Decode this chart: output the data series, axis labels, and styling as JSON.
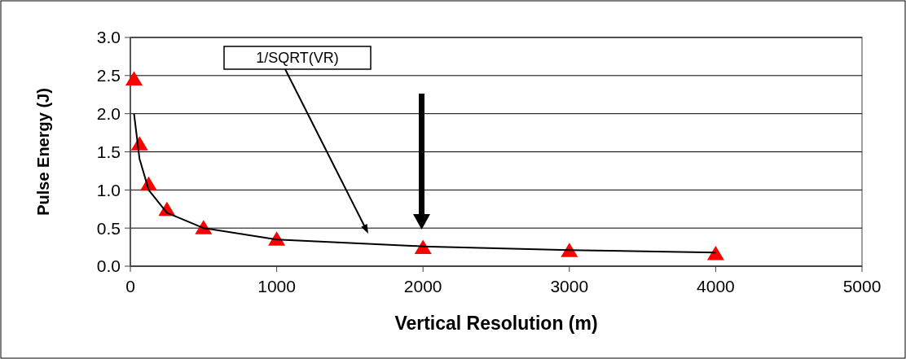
{
  "chart_data": {
    "type": "scatter",
    "xlabel": "Vertical Resolution (m)",
    "ylabel": "Pulse Energy (J)",
    "x": [
      25,
      62.5,
      125,
      250,
      500,
      1000,
      2000,
      3000,
      4000
    ],
    "series": [
      {
        "type": "scatter",
        "color": "#ff0000",
        "marker": "triangle",
        "values": [
          2.45,
          1.6,
          1.07,
          0.74,
          0.5,
          0.35,
          0.24,
          0.2,
          0.16
        ]
      },
      {
        "type": "line",
        "color": "#000000",
        "marker": "none",
        "values": [
          2.0,
          1.41,
          1.0,
          0.7,
          0.5,
          0.35,
          0.26,
          0.21,
          0.18
        ]
      }
    ],
    "xlim": [
      0,
      5000
    ],
    "xticks": [
      0,
      1000,
      2000,
      3000,
      4000,
      5000
    ],
    "ylim": [
      0,
      3
    ],
    "yticks": [
      {
        "value": 0,
        "label": "0.0"
      },
      {
        "value": 0.5,
        "label": "0.5"
      },
      {
        "value": 1,
        "label": "1.0"
      },
      {
        "value": 1.5,
        "label": "1.5"
      },
      {
        "value": 2,
        "label": "2.0"
      },
      {
        "value": 2.5,
        "label": "2.5"
      },
      {
        "value": 3,
        "label": "3.0"
      }
    ],
    "grid": "y",
    "annotations": [
      "1/SQRT(VR)"
    ]
  }
}
